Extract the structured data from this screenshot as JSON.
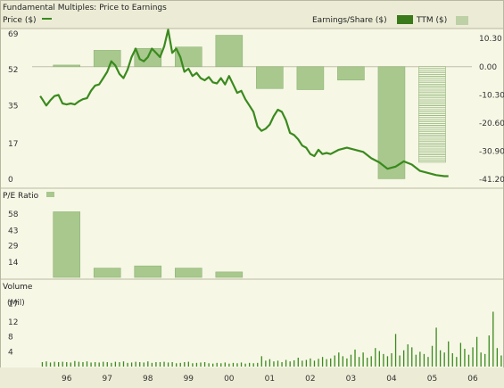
{
  "header": {
    "title": "Fundamental Multiples: Price to Earnings",
    "price_legend": "Price ($)",
    "eps_legend": "Earnings/Share ($)",
    "ttm_legend": "TTM ($)"
  },
  "colors": {
    "price_line": "#3a8a1e",
    "bar_fill": "#a8c88e",
    "bar_stroke": "#8fb576",
    "eps_legend_box": "#3a7a1a",
    "panel_bg": "#f7f7e6",
    "header_bg": "#ececd6",
    "border": "#b8b8a0"
  },
  "pe_panel": {
    "label": "P/E Ratio"
  },
  "volume_panel": {
    "label": "Volume",
    "unit": "(Mil)"
  },
  "chart_data": [
    {
      "type": "line+bar",
      "title": "Fundamental Multiples: Price to Earnings",
      "x_tick_labels": [
        "96",
        "97",
        "98",
        "99",
        "00",
        "01",
        "02",
        "03",
        "04",
        "05",
        "06"
      ],
      "price_axis": {
        "ticks": [
          69,
          52,
          35,
          17,
          0
        ],
        "ylim": [
          0,
          69
        ]
      },
      "eps_axis": {
        "ticks": [
          "10.30",
          "0.00",
          "-10.30",
          "-20.60",
          "-30.90",
          "-41.20"
        ],
        "ylim": [
          -41.2,
          12
        ]
      },
      "price_series": {
        "name": "Price ($)",
        "x": [
          95.85,
          95.9,
          96.0,
          96.1,
          96.2,
          96.3,
          96.4,
          96.5,
          96.6,
          96.7,
          96.8,
          96.9,
          97.0,
          97.1,
          97.2,
          97.3,
          97.4,
          97.5,
          97.6,
          97.7,
          97.8,
          97.9,
          98.0,
          98.1,
          98.2,
          98.3,
          98.4,
          98.5,
          98.6,
          98.7,
          98.8,
          98.9,
          99.0,
          99.1,
          99.2,
          99.3,
          99.4,
          99.5,
          99.6,
          99.7,
          99.8,
          99.9,
          100.0,
          100.1,
          100.2,
          100.3,
          100.4,
          100.5,
          100.6,
          100.7,
          100.8,
          100.9,
          101.0,
          101.1,
          101.2,
          101.3,
          101.4,
          101.5,
          101.6,
          101.7,
          101.8,
          101.9,
          102.0,
          102.1,
          102.2,
          102.3,
          102.4,
          102.5,
          102.6,
          102.7,
          102.8,
          102.9,
          103.0,
          103.2,
          103.4,
          103.6,
          103.8,
          104.0,
          104.2,
          104.4,
          104.6,
          104.8,
          105.0,
          105.2,
          105.4,
          105.6,
          105.8,
          105.9
        ],
        "y": [
          39.5,
          38.0,
          35.0,
          37.5,
          39.5,
          40.0,
          36.0,
          35.5,
          36.0,
          35.5,
          37.0,
          38.0,
          38.5,
          42.0,
          44.5,
          45.0,
          48.0,
          51.0,
          56.0,
          54.0,
          50.0,
          48.0,
          52.0,
          58.0,
          62.0,
          57.0,
          56.0,
          58.0,
          62.0,
          60.0,
          58.0,
          63.0,
          71.0,
          60.0,
          62.0,
          58.0,
          51.0,
          52.5,
          49.0,
          50.5,
          48.0,
          47.0,
          48.5,
          46.0,
          45.5,
          48.0,
          45.0,
          49.0,
          45.0,
          41.0,
          42.0,
          38.0,
          35.0,
          32.0,
          25.0,
          23.0,
          24.0,
          26.0,
          30.0,
          33.0,
          32.0,
          28.0,
          22.0,
          21.0,
          19.0,
          16.0,
          15.0,
          12.0,
          11.0,
          14.0,
          12.0,
          12.5,
          12.0,
          14.0,
          15.0,
          14.0,
          13.0,
          10.0,
          8.0,
          5.0,
          6.0,
          8.5,
          7.0,
          4.0,
          3.0,
          2.0,
          1.5,
          1.5
        ]
      },
      "eps_series": {
        "name": "Earnings/Share ($)",
        "categories": [
          "96",
          "97",
          "98",
          "99",
          "00",
          "01",
          "02",
          "03",
          "04"
        ],
        "values": [
          0.6,
          6.0,
          6.7,
          7.2,
          11.5,
          -8.0,
          -8.4,
          -4.9,
          -41.0
        ]
      },
      "ttm_series": {
        "name": "TTM ($)",
        "category": "05",
        "value": -35.0
      }
    },
    {
      "type": "bar",
      "title": "P/E Ratio",
      "y_ticks": [
        58,
        43,
        29,
        14
      ],
      "ylim": [
        0,
        62
      ],
      "categories": [
        "96",
        "97",
        "98",
        "99",
        "00"
      ],
      "values": [
        60.0,
        8.5,
        10.5,
        8.5,
        5.0
      ]
    },
    {
      "type": "bar",
      "title": "Volume",
      "unit": "(Mil)",
      "y_ticks": [
        17,
        12,
        8,
        4
      ],
      "ylim": [
        0,
        19
      ],
      "x_start": 95.9,
      "x_step": 0.1,
      "values": [
        1.2,
        1.4,
        1.1,
        1.3,
        1.2,
        1.3,
        1.2,
        1.1,
        1.5,
        1.3,
        1.2,
        1.4,
        1.1,
        1.2,
        1.1,
        1.3,
        1.2,
        1.0,
        1.3,
        1.2,
        1.4,
        1.0,
        1.1,
        1.3,
        1.2,
        1.1,
        1.4,
        1.0,
        1.2,
        1.2,
        1.3,
        1.1,
        1.2,
        0.9,
        1.0,
        1.2,
        1.3,
        0.9,
        1.0,
        1.1,
        1.2,
        0.9,
        0.8,
        1.0,
        0.9,
        1.1,
        0.8,
        1.0,
        0.9,
        1.1,
        0.8,
        1.0,
        0.9,
        1.0,
        2.8,
        1.6,
        2.0,
        1.4,
        1.6,
        1.2,
        1.8,
        1.4,
        1.7,
        2.4,
        1.6,
        1.8,
        2.2,
        1.6,
        2.1,
        2.6,
        2.0,
        2.2,
        3.0,
        3.8,
        2.8,
        2.2,
        3.2,
        4.6,
        2.6,
        3.8,
        2.4,
        2.8,
        5.0,
        4.2,
        3.4,
        2.8,
        3.6,
        8.8,
        3.0,
        4.4,
        6.0,
        5.2,
        3.2,
        4.0,
        3.4,
        2.6,
        5.6,
        10.5,
        4.4,
        3.8,
        6.8,
        3.6,
        2.6,
        6.4,
        4.8,
        3.2,
        5.2,
        8.0,
        3.8,
        3.4,
        8.4,
        14.8,
        5.0,
        3.0,
        2.2,
        3.8,
        1.8,
        1.2
      ]
    }
  ]
}
